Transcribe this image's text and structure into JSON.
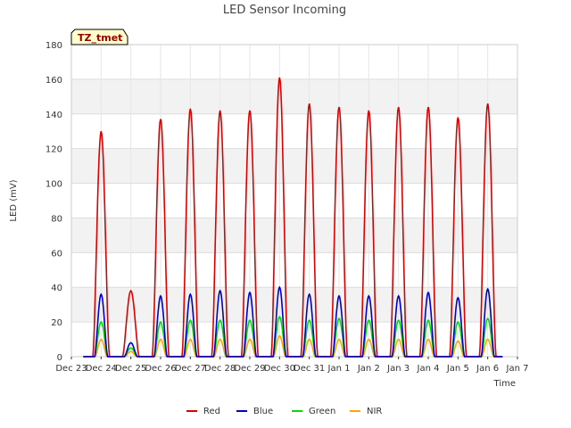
{
  "chart_data": {
    "type": "line",
    "title": "LED Sensor Incoming",
    "xlabel": "Time",
    "ylabel": "LED (mV)",
    "ylim": [
      0,
      180
    ],
    "yticks": [
      0,
      20,
      40,
      60,
      80,
      100,
      120,
      140,
      160,
      180
    ],
    "xlim": [
      0,
      15
    ],
    "xtick_labels": [
      "Dec 23",
      "Dec 24",
      "Dec 25",
      "Dec 26",
      "Dec 27",
      "Dec 28",
      "Dec 29",
      "Dec 30",
      "Dec 31",
      "Jan 1",
      "Jan 2",
      "Jan 3",
      "Jan 4",
      "Jan 5",
      "Jan 6",
      "Jan 7"
    ],
    "badge": "TZ_tmet",
    "grid": true,
    "legend_position": "bottom-center",
    "series": [
      {
        "name": "Red",
        "color": "#dd0000"
      },
      {
        "name": "Blue",
        "color": "#0000cc"
      },
      {
        "name": "Green",
        "color": "#00dd00"
      },
      {
        "name": "NIR",
        "color": "#ffa500"
      }
    ],
    "days": [
      {
        "center": 1.0,
        "peaks": [
          130,
          36,
          20,
          10
        ]
      },
      {
        "center": 2.0,
        "peaks": [
          38,
          8,
          5,
          3
        ]
      },
      {
        "center": 3.0,
        "peaks": [
          137,
          35,
          20,
          10
        ]
      },
      {
        "center": 4.0,
        "peaks": [
          143,
          36,
          21,
          10
        ]
      },
      {
        "center": 5.0,
        "peaks": [
          142,
          38,
          21,
          10
        ]
      },
      {
        "center": 6.0,
        "peaks": [
          142,
          37,
          21,
          10
        ]
      },
      {
        "center": 7.0,
        "peaks": [
          161,
          40,
          23,
          12
        ]
      },
      {
        "center": 8.0,
        "peaks": [
          146,
          36,
          21,
          10
        ]
      },
      {
        "center": 9.0,
        "peaks": [
          144,
          35,
          22,
          10
        ]
      },
      {
        "center": 10.0,
        "peaks": [
          142,
          35,
          21,
          10
        ]
      },
      {
        "center": 11.0,
        "peaks": [
          144,
          35,
          21,
          10
        ]
      },
      {
        "center": 12.0,
        "peaks": [
          144,
          37,
          21,
          10
        ]
      },
      {
        "center": 13.0,
        "peaks": [
          138,
          34,
          20,
          9
        ]
      },
      {
        "center": 14.0,
        "peaks": [
          146,
          39,
          22,
          10
        ]
      }
    ]
  }
}
